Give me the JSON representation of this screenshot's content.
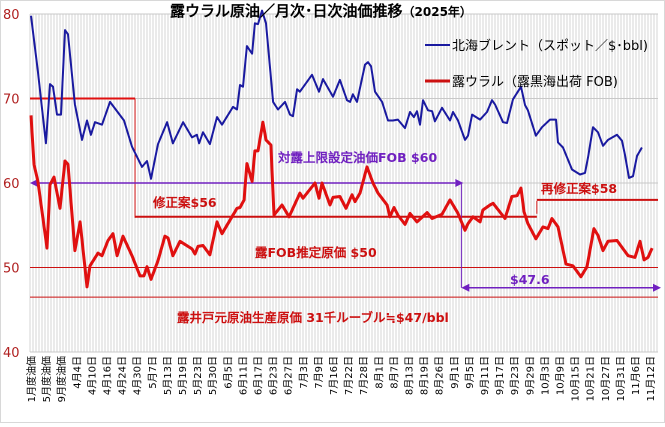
{
  "chart_data": {
    "type": "line",
    "title": "露ウラル原油／月次･日次油価推移",
    "title_year": "（2025年）",
    "ylim": [
      40,
      80
    ],
    "yticks": [
      80,
      70,
      60,
      50,
      40
    ],
    "grid": true,
    "legend_position": "top-right",
    "categories": [
      "1月度油価",
      "5月度油価",
      "9月度油価",
      "4月4日",
      "4月10日",
      "4月16日",
      "4月24日",
      "4月30日",
      "5月7日",
      "5月13日",
      "5月19日",
      "5月23日",
      "5月30日",
      "6月5日",
      "6月11日",
      "6月17日",
      "6月23日",
      "6月27日",
      "7月3日",
      "7月9日",
      "7月16日",
      "7月22日",
      "7月28日",
      "8月1日",
      "8月7日",
      "8月13日",
      "8月19日",
      "8月26日",
      "9月1日",
      "9月5日",
      "9月11日",
      "9月17日",
      "9月23日",
      "9月29日",
      "10月3日",
      "10月9日",
      "10月15日",
      "10月21日",
      "10月27日",
      "10月31日",
      "11月6日",
      "11月12日"
    ],
    "series": [
      {
        "name": "北海ブレント（スポット／$･bbl)",
        "color": "#1a1aa0",
        "points": [
          [
            0,
            79.8
          ],
          [
            0.46,
            73.2
          ],
          [
            0.99,
            64.7
          ],
          [
            1.26,
            71.7
          ],
          [
            1.46,
            71.4
          ],
          [
            1.72,
            68.1
          ],
          [
            1.99,
            68.1
          ],
          [
            2.25,
            78.1
          ],
          [
            2.45,
            77.6
          ],
          [
            2.91,
            69.3
          ],
          [
            3.38,
            65.1
          ],
          [
            3.71,
            67.4
          ],
          [
            3.97,
            65.7
          ],
          [
            4.24,
            67.2
          ],
          [
            4.7,
            66.9
          ],
          [
            5.23,
            69.6
          ],
          [
            6.16,
            67.4
          ],
          [
            6.69,
            64.3
          ],
          [
            7.35,
            61.9
          ],
          [
            7.68,
            62.6
          ],
          [
            7.95,
            60.5
          ],
          [
            8.41,
            64.6
          ],
          [
            9.01,
            67.2
          ],
          [
            9.4,
            64.7
          ],
          [
            10.07,
            67.2
          ],
          [
            10.66,
            65.4
          ],
          [
            10.99,
            65.7
          ],
          [
            11.13,
            64.7
          ],
          [
            11.39,
            66.0
          ],
          [
            11.85,
            64.6
          ],
          [
            12.32,
            67.8
          ],
          [
            12.65,
            66.9
          ],
          [
            13.38,
            69.0
          ],
          [
            13.64,
            68.7
          ],
          [
            13.84,
            71.6
          ],
          [
            14.04,
            71.4
          ],
          [
            14.3,
            76.2
          ],
          [
            14.64,
            75.3
          ],
          [
            14.83,
            78.9
          ],
          [
            15.03,
            78.8
          ],
          [
            15.3,
            80.4
          ],
          [
            15.56,
            78.9
          ],
          [
            16.03,
            69.6
          ],
          [
            16.36,
            68.7
          ],
          [
            16.82,
            69.6
          ],
          [
            17.15,
            68.1
          ],
          [
            17.35,
            67.9
          ],
          [
            17.62,
            71.1
          ],
          [
            17.81,
            70.8
          ],
          [
            18.61,
            72.8
          ],
          [
            19.07,
            70.8
          ],
          [
            19.34,
            72.3
          ],
          [
            20.0,
            70.2
          ],
          [
            20.46,
            72.2
          ],
          [
            20.93,
            69.8
          ],
          [
            21.13,
            69.6
          ],
          [
            21.32,
            70.5
          ],
          [
            21.59,
            69.6
          ],
          [
            22.12,
            74.0
          ],
          [
            22.32,
            74.3
          ],
          [
            22.52,
            73.8
          ],
          [
            22.78,
            70.8
          ],
          [
            23.25,
            69.6
          ],
          [
            23.64,
            67.4
          ],
          [
            23.97,
            67.4
          ],
          [
            24.3,
            67.5
          ],
          [
            24.77,
            66.5
          ],
          [
            25.1,
            68.4
          ],
          [
            25.36,
            67.8
          ],
          [
            25.56,
            68.5
          ],
          [
            25.76,
            66.9
          ],
          [
            25.96,
            69.8
          ],
          [
            26.29,
            68.6
          ],
          [
            26.56,
            68.5
          ],
          [
            26.75,
            67.3
          ],
          [
            27.22,
            68.9
          ],
          [
            27.75,
            67.4
          ],
          [
            27.95,
            68.4
          ],
          [
            28.28,
            67.4
          ],
          [
            28.74,
            65.1
          ],
          [
            28.94,
            65.6
          ],
          [
            29.21,
            68.1
          ],
          [
            29.74,
            67.5
          ],
          [
            30.2,
            68.4
          ],
          [
            30.53,
            69.8
          ],
          [
            30.73,
            69.3
          ],
          [
            31.26,
            67.2
          ],
          [
            31.52,
            67.1
          ],
          [
            31.92,
            69.9
          ],
          [
            32.45,
            71.4
          ],
          [
            32.72,
            69.2
          ],
          [
            32.91,
            68.6
          ],
          [
            33.44,
            65.6
          ],
          [
            33.84,
            66.6
          ],
          [
            34.37,
            67.5
          ],
          [
            34.77,
            67.5
          ],
          [
            34.9,
            64.8
          ],
          [
            35.23,
            64.2
          ],
          [
            35.83,
            61.6
          ],
          [
            36.36,
            61.0
          ],
          [
            36.69,
            61.2
          ],
          [
            36.89,
            63.0
          ],
          [
            37.22,
            66.6
          ],
          [
            37.55,
            66.0
          ],
          [
            37.88,
            64.4
          ],
          [
            38.21,
            65.1
          ],
          [
            38.81,
            65.7
          ],
          [
            39.14,
            65.0
          ],
          [
            39.34,
            63.3
          ],
          [
            39.6,
            60.6
          ],
          [
            39.87,
            60.8
          ],
          [
            40.13,
            63.2
          ],
          [
            40.46,
            64.2
          ]
        ]
      },
      {
        "name": "露ウラル（露黒海出荷 FOB)",
        "color": "#e01010",
        "points": [
          [
            0,
            68.0
          ],
          [
            0.2,
            62.2
          ],
          [
            0.46,
            60.2
          ],
          [
            1.06,
            52.3
          ],
          [
            1.26,
            59.8
          ],
          [
            1.52,
            60.7
          ],
          [
            1.92,
            57.0
          ],
          [
            2.25,
            62.6
          ],
          [
            2.45,
            62.2
          ],
          [
            2.91,
            52.0
          ],
          [
            3.25,
            55.4
          ],
          [
            3.71,
            47.7
          ],
          [
            3.91,
            50.2
          ],
          [
            4.44,
            51.7
          ],
          [
            4.7,
            51.4
          ],
          [
            5.1,
            53.2
          ],
          [
            5.43,
            54.0
          ],
          [
            5.7,
            51.4
          ],
          [
            6.09,
            53.7
          ],
          [
            6.69,
            51.4
          ],
          [
            7.22,
            49.0
          ],
          [
            7.48,
            49.0
          ],
          [
            7.68,
            50.1
          ],
          [
            7.95,
            48.6
          ],
          [
            8.41,
            50.8
          ],
          [
            8.87,
            53.7
          ],
          [
            9.07,
            53.5
          ],
          [
            9.4,
            51.4
          ],
          [
            9.87,
            53.1
          ],
          [
            10.66,
            52.2
          ],
          [
            10.86,
            51.6
          ],
          [
            11.06,
            52.5
          ],
          [
            11.39,
            52.6
          ],
          [
            11.85,
            51.5
          ],
          [
            12.32,
            55.4
          ],
          [
            12.65,
            54.0
          ],
          [
            13.64,
            57.0
          ],
          [
            13.84,
            57.1
          ],
          [
            14.11,
            58.0
          ],
          [
            14.3,
            62.3
          ],
          [
            14.64,
            60.2
          ],
          [
            14.83,
            63.8
          ],
          [
            15.03,
            63.8
          ],
          [
            15.36,
            67.2
          ],
          [
            15.56,
            65.1
          ],
          [
            15.89,
            64.5
          ],
          [
            16.09,
            56.2
          ],
          [
            16.62,
            57.4
          ],
          [
            17.09,
            56.0
          ],
          [
            17.81,
            58.8
          ],
          [
            18.01,
            58.2
          ],
          [
            18.81,
            60.0
          ],
          [
            19.07,
            58.2
          ],
          [
            19.27,
            60.0
          ],
          [
            19.8,
            57.4
          ],
          [
            20.0,
            58.3
          ],
          [
            20.46,
            58.4
          ],
          [
            20.86,
            57.0
          ],
          [
            21.26,
            58.6
          ],
          [
            21.46,
            57.8
          ],
          [
            21.79,
            58.8
          ],
          [
            22.25,
            61.9
          ],
          [
            22.65,
            60.0
          ],
          [
            22.98,
            58.8
          ],
          [
            23.58,
            57.4
          ],
          [
            23.77,
            56.0
          ],
          [
            24.04,
            57.1
          ],
          [
            24.3,
            56.2
          ],
          [
            24.77,
            55.1
          ],
          [
            25.1,
            56.4
          ],
          [
            25.56,
            55.4
          ],
          [
            26.23,
            56.5
          ],
          [
            26.56,
            55.8
          ],
          [
            27.22,
            56.3
          ],
          [
            27.75,
            58.0
          ],
          [
            28.08,
            57.0
          ],
          [
            28.28,
            56.4
          ],
          [
            28.74,
            54.4
          ],
          [
            28.94,
            55.2
          ],
          [
            29.27,
            56.0
          ],
          [
            29.74,
            55.4
          ],
          [
            29.93,
            56.8
          ],
          [
            30.4,
            57.4
          ],
          [
            30.6,
            57.6
          ],
          [
            31.39,
            55.8
          ],
          [
            31.85,
            58.4
          ],
          [
            32.19,
            58.5
          ],
          [
            32.45,
            59.4
          ],
          [
            32.65,
            56.6
          ],
          [
            32.91,
            55.2
          ],
          [
            33.44,
            53.4
          ],
          [
            33.91,
            54.8
          ],
          [
            34.24,
            54.6
          ],
          [
            34.5,
            55.8
          ],
          [
            34.9,
            54.8
          ],
          [
            35.43,
            50.4
          ],
          [
            35.89,
            50.2
          ],
          [
            36.42,
            48.9
          ],
          [
            36.82,
            50.1
          ],
          [
            37.28,
            54.6
          ],
          [
            37.55,
            53.8
          ],
          [
            37.88,
            52.0
          ],
          [
            38.21,
            53.1
          ],
          [
            38.81,
            53.2
          ],
          [
            39.21,
            52.2
          ],
          [
            39.54,
            51.4
          ],
          [
            40.0,
            51.2
          ],
          [
            40.33,
            53.1
          ],
          [
            40.6,
            50.9
          ],
          [
            40.86,
            51.2
          ],
          [
            41.13,
            52.3
          ]
        ]
      }
    ],
    "reference_lines": {
      "initial_cap": {
        "value": 70,
        "color": "#e01010"
      },
      "revised_56": {
        "value": 56,
        "label": "修正案$56",
        "color": "#cc1010"
      },
      "revised_58": {
        "value": 58,
        "label": "再修正案$58",
        "color": "#cc1010"
      },
      "cap_60": {
        "value": 60,
        "label": "対露上限設定油価FOB $60",
        "color": "#7020c0"
      },
      "cap_47_6": {
        "value": 47.6,
        "label": "$47.6",
        "color": "#7020c0"
      },
      "fob_cost_50": {
        "value": 50,
        "label": "露FOB推定原価 $50",
        "color": "#cc1010"
      },
      "well_cost_47": {
        "value": 46.5,
        "label": "露井戸元原油生産原価 31千ルーブル≒$47/bbl",
        "color": "#cc1010"
      }
    }
  }
}
